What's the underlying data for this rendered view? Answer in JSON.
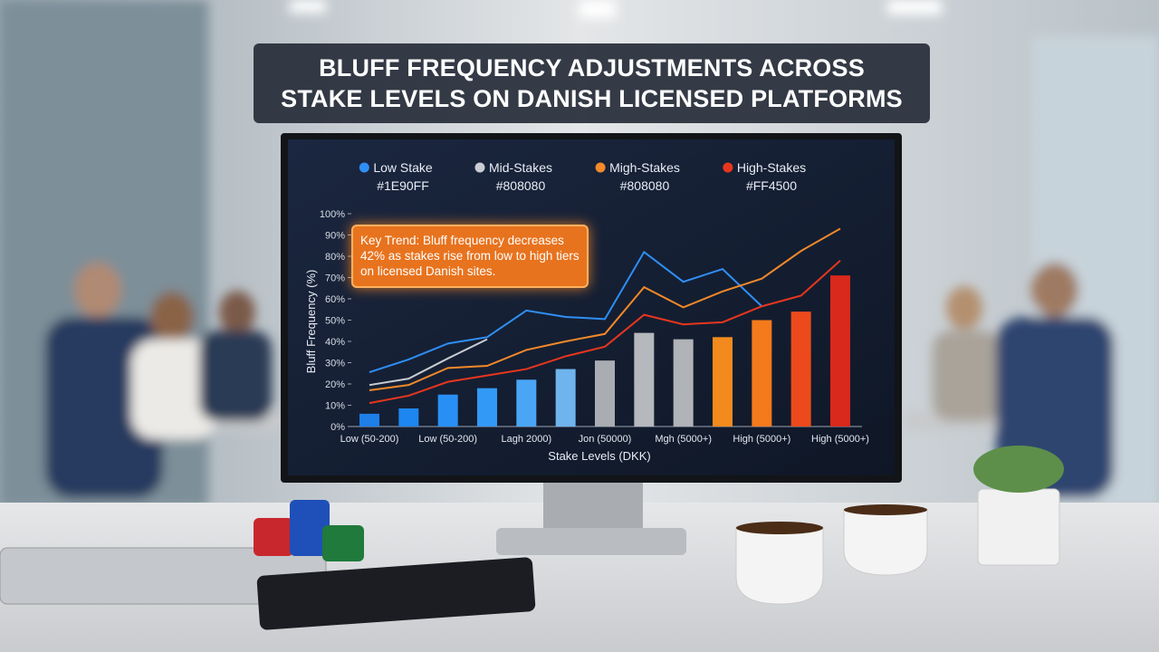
{
  "chart_data": {
    "type": "bar_line",
    "title": [
      "BLUFF FREQUENCY ADJUSTMENTS ACROSS",
      "STAKE LEVELS ON DANISH LICENSED PLATFORMS"
    ],
    "ylabel": "Bluff Frequency (%)",
    "xlabel": "Stake Levels (DKK)",
    "annotation": "Key Trend: Bluff frequency decreases 42% as stakes rise from low to high tiers on licensed Danish sites.",
    "categories": [
      "Low (50-200)",
      null,
      "Low (50-200)",
      null,
      "Lagh 2000)",
      null,
      "Jon (50000)",
      null,
      "Mgh (5000+)",
      null,
      "High (5000+)",
      null,
      "High (5000+)"
    ],
    "bars": {
      "values": [
        6,
        8.5,
        15,
        18,
        22,
        27,
        31,
        44,
        41,
        42,
        50,
        54,
        71
      ],
      "colors": [
        "#1e7fe8",
        "#1e86f0",
        "#2890f5",
        "#3399f7",
        "#4aa6f5",
        "#6fb4ec",
        "#a9adb3",
        "#b5b8bc",
        "#b0b3b7",
        "#f28a1e",
        "#f47a1c",
        "#ec4a1c",
        "#d9281c"
      ]
    },
    "series": [
      {
        "name": "Low Stake",
        "code": "#1E90FF",
        "color": "#2f8ff5",
        "values": [
          25.5,
          31.5,
          39,
          42,
          54.5,
          51.5,
          50.5,
          82,
          68,
          74,
          56.5,
          null,
          null
        ]
      },
      {
        "name": "Mid-Stakes",
        "code": "#808080",
        "color": "#c9ccd2",
        "values": [
          19.5,
          22.5,
          32,
          41,
          null,
          null,
          null,
          null,
          null,
          null,
          null,
          null,
          null
        ]
      },
      {
        "name": "Migh-Stakes",
        "code": "#808080",
        "color": "#f2892a",
        "values": [
          17,
          19.5,
          27.5,
          28.5,
          36,
          40,
          43.5,
          65.5,
          56,
          63.5,
          69.5,
          82.5,
          93
        ]
      },
      {
        "name": "High-Stakes",
        "code": "#FF4500",
        "color": "#e8361e",
        "values": [
          11,
          14.5,
          21,
          24,
          27,
          33,
          37.5,
          52.5,
          48,
          49,
          56.5,
          61.5,
          78
        ]
      }
    ],
    "ylim": [
      0,
      100
    ],
    "yticks": [
      {
        "value": 0,
        "label": "0%"
      },
      {
        "value": 10,
        "label": "10%"
      },
      {
        "value": 20,
        "label": "20%"
      },
      {
        "value": 30,
        "label": "30%"
      },
      {
        "value": 40,
        "label": "40%"
      },
      {
        "value": 50,
        "label": "50%"
      },
      {
        "value": 60,
        "label": "60%"
      },
      {
        "value": 70,
        "label": "70%"
      },
      {
        "value": 80,
        "label": "80%"
      },
      {
        "value": 90,
        "label": "90%"
      },
      {
        "value": 100,
        "label": "100%"
      }
    ]
  }
}
